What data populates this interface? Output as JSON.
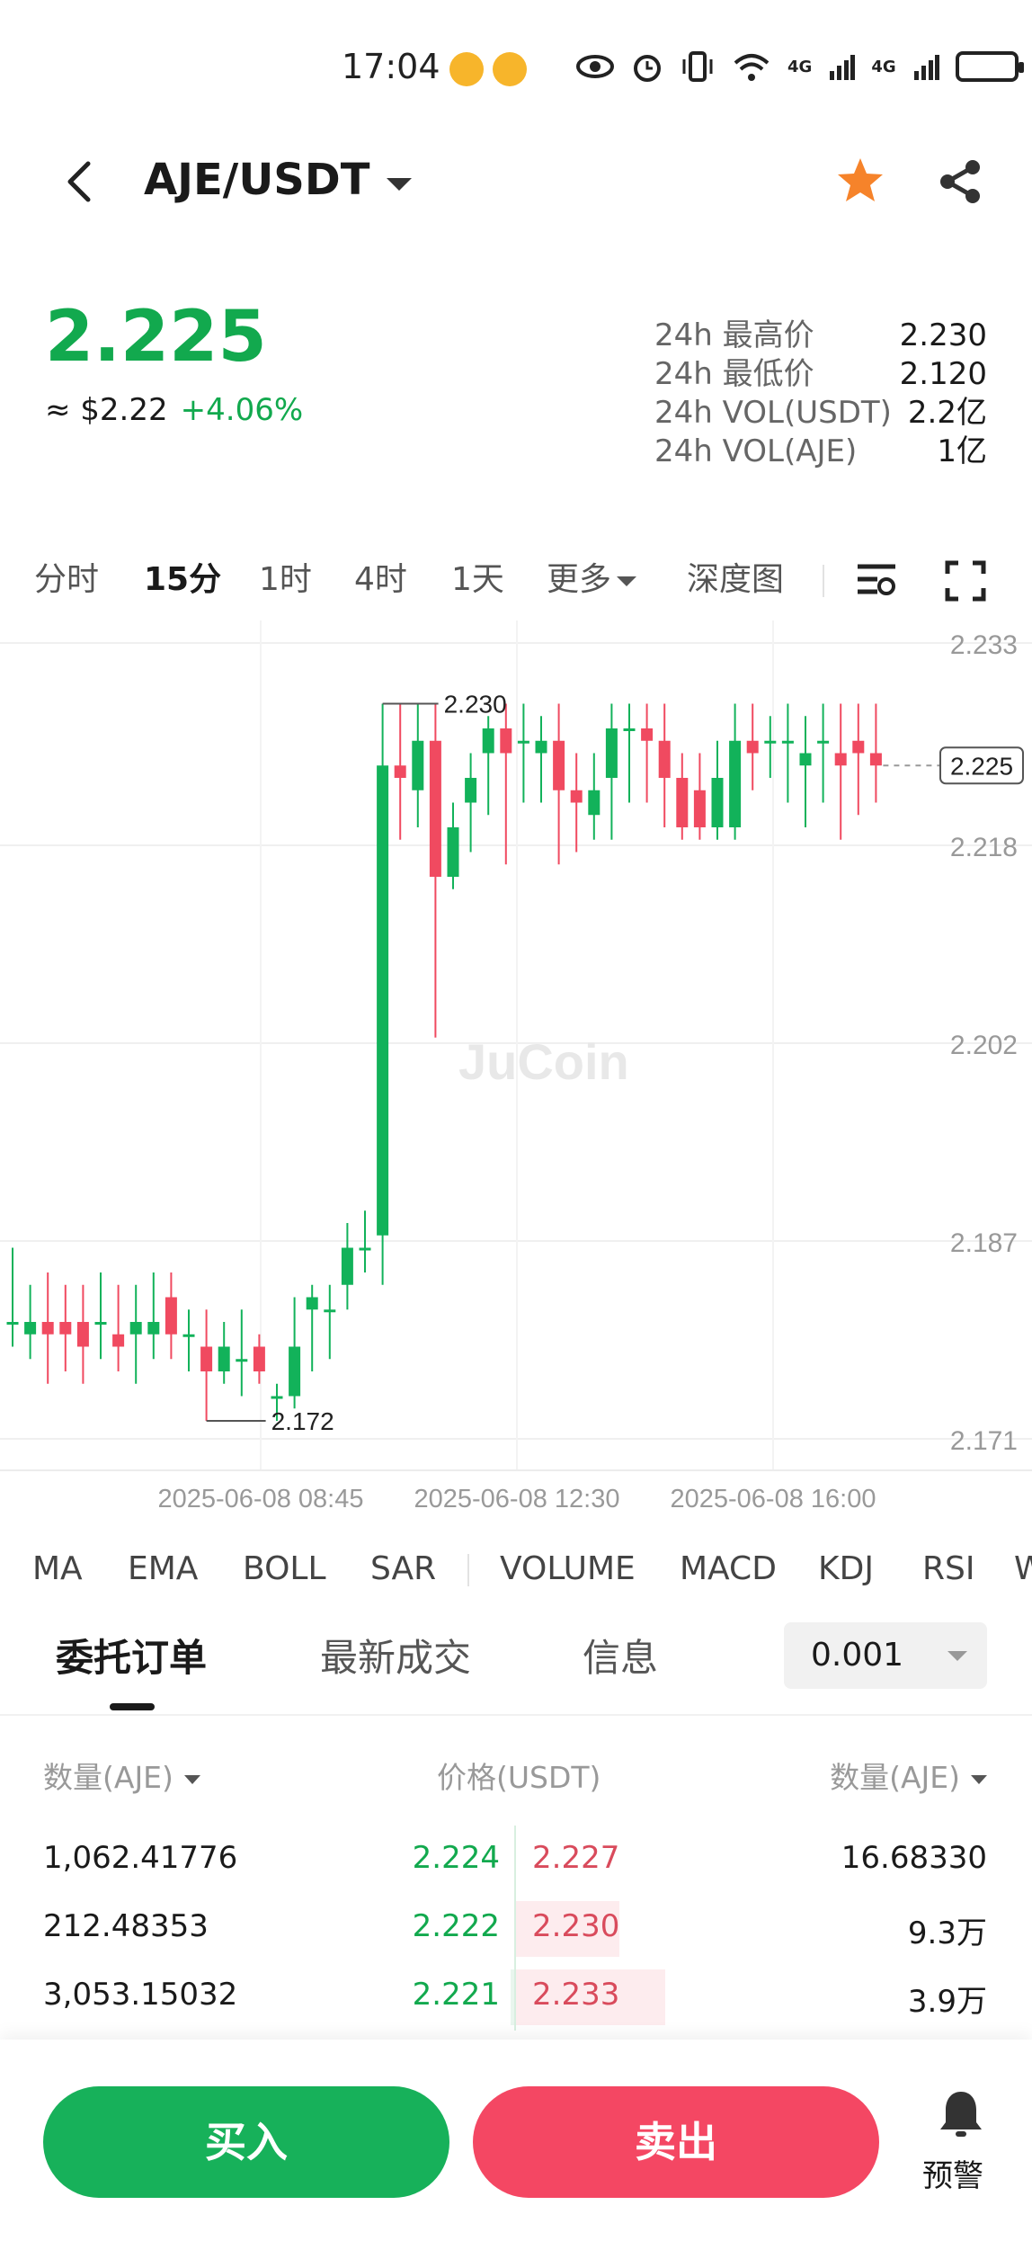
{
  "status_bar": {
    "time": "17:04",
    "network_1": "4G",
    "network_2": "4G"
  },
  "header": {
    "pair": "AJE/USDT"
  },
  "price": {
    "last": "2.225",
    "usd_equiv": "≈ $2.22",
    "change": "+4.06%",
    "color_up": "#12a94e"
  },
  "stats": [
    {
      "label": "24h 最高价",
      "value": "2.230"
    },
    {
      "label": "24h 最低价",
      "value": "2.120"
    },
    {
      "label": "24h VOL(USDT)",
      "value": "2.2亿"
    },
    {
      "label": "24h VOL(AJE)",
      "value": "1亿"
    }
  ],
  "intervals": {
    "items": [
      "分时",
      "15分",
      "1时",
      "4时",
      "1天",
      "更多",
      "深度图"
    ],
    "active": "15分"
  },
  "chart_data": {
    "type": "candlestick",
    "y_ticks": [
      "2.233",
      "2.218",
      "2.202",
      "2.187",
      "2.171"
    ],
    "x_ticks": [
      "2025-06-08 08:45",
      "2025-06-08 12:30",
      "2025-06-08 16:00"
    ],
    "current_price_label": "2.225",
    "high_label": "2.230",
    "low_label": "2.172",
    "watermark": "JuCoin",
    "ylim": [
      2.168,
      2.236
    ],
    "up_color": "#12b25a",
    "down_color": "#f04a60",
    "candles": [
      {
        "o": 2.18,
        "c": 2.18,
        "h": 2.186,
        "l": 2.178
      },
      {
        "o": 2.179,
        "c": 2.18,
        "h": 2.183,
        "l": 2.177
      },
      {
        "o": 2.18,
        "c": 2.179,
        "h": 2.184,
        "l": 2.175
      },
      {
        "o": 2.18,
        "c": 2.179,
        "h": 2.183,
        "l": 2.176
      },
      {
        "o": 2.18,
        "c": 2.178,
        "h": 2.183,
        "l": 2.175
      },
      {
        "o": 2.18,
        "c": 2.18,
        "h": 2.184,
        "l": 2.177
      },
      {
        "o": 2.179,
        "c": 2.178,
        "h": 2.183,
        "l": 2.176
      },
      {
        "o": 2.179,
        "c": 2.18,
        "h": 2.183,
        "l": 2.175
      },
      {
        "o": 2.179,
        "c": 2.18,
        "h": 2.184,
        "l": 2.177
      },
      {
        "o": 2.182,
        "c": 2.179,
        "h": 2.184,
        "l": 2.177
      },
      {
        "o": 2.179,
        "c": 2.179,
        "h": 2.181,
        "l": 2.176
      },
      {
        "o": 2.178,
        "c": 2.176,
        "h": 2.181,
        "l": 2.172
      },
      {
        "o": 2.176,
        "c": 2.178,
        "h": 2.18,
        "l": 2.175
      },
      {
        "o": 2.177,
        "c": 2.177,
        "h": 2.181,
        "l": 2.174
      },
      {
        "o": 2.178,
        "c": 2.176,
        "h": 2.179,
        "l": 2.175
      },
      {
        "o": 2.174,
        "c": 2.174,
        "h": 2.175,
        "l": 2.172
      },
      {
        "o": 2.174,
        "c": 2.178,
        "h": 2.182,
        "l": 2.173
      },
      {
        "o": 2.181,
        "c": 2.182,
        "h": 2.183,
        "l": 2.176
      },
      {
        "o": 2.181,
        "c": 2.181,
        "h": 2.183,
        "l": 2.177
      },
      {
        "o": 2.183,
        "c": 2.186,
        "h": 2.188,
        "l": 2.181
      },
      {
        "o": 2.186,
        "c": 2.186,
        "h": 2.189,
        "l": 2.184
      },
      {
        "o": 2.187,
        "c": 2.225,
        "h": 2.23,
        "l": 2.183
      },
      {
        "o": 2.225,
        "c": 2.224,
        "h": 2.23,
        "l": 2.219
      },
      {
        "o": 2.223,
        "c": 2.227,
        "h": 2.23,
        "l": 2.22
      },
      {
        "o": 2.227,
        "c": 2.216,
        "h": 2.23,
        "l": 2.203
      },
      {
        "o": 2.216,
        "c": 2.22,
        "h": 2.222,
        "l": 2.215
      },
      {
        "o": 2.222,
        "c": 2.224,
        "h": 2.226,
        "l": 2.218
      },
      {
        "o": 2.226,
        "c": 2.228,
        "h": 2.229,
        "l": 2.221
      },
      {
        "o": 2.228,
        "c": 2.226,
        "h": 2.23,
        "l": 2.217
      },
      {
        "o": 2.227,
        "c": 2.227,
        "h": 2.23,
        "l": 2.222
      },
      {
        "o": 2.226,
        "c": 2.227,
        "h": 2.229,
        "l": 2.222
      },
      {
        "o": 2.227,
        "c": 2.223,
        "h": 2.23,
        "l": 2.217
      },
      {
        "o": 2.223,
        "c": 2.222,
        "h": 2.226,
        "l": 2.218
      },
      {
        "o": 2.221,
        "c": 2.223,
        "h": 2.226,
        "l": 2.219
      },
      {
        "o": 2.224,
        "c": 2.228,
        "h": 2.23,
        "l": 2.219
      },
      {
        "o": 2.228,
        "c": 2.228,
        "h": 2.23,
        "l": 2.222
      },
      {
        "o": 2.228,
        "c": 2.227,
        "h": 2.23,
        "l": 2.222
      },
      {
        "o": 2.227,
        "c": 2.224,
        "h": 2.23,
        "l": 2.22
      },
      {
        "o": 2.224,
        "c": 2.22,
        "h": 2.226,
        "l": 2.219
      },
      {
        "o": 2.223,
        "c": 2.22,
        "h": 2.226,
        "l": 2.219
      },
      {
        "o": 2.22,
        "c": 2.224,
        "h": 2.227,
        "l": 2.219
      },
      {
        "o": 2.22,
        "c": 2.227,
        "h": 2.23,
        "l": 2.219
      },
      {
        "o": 2.227,
        "c": 2.226,
        "h": 2.23,
        "l": 2.223
      },
      {
        "o": 2.227,
        "c": 2.227,
        "h": 2.229,
        "l": 2.224
      },
      {
        "o": 2.227,
        "c": 2.227,
        "h": 2.23,
        "l": 2.222
      },
      {
        "o": 2.225,
        "c": 2.226,
        "h": 2.229,
        "l": 2.22
      },
      {
        "o": 2.227,
        "c": 2.227,
        "h": 2.23,
        "l": 2.222
      },
      {
        "o": 2.226,
        "c": 2.225,
        "h": 2.23,
        "l": 2.219
      },
      {
        "o": 2.227,
        "c": 2.226,
        "h": 2.23,
        "l": 2.221
      },
      {
        "o": 2.226,
        "c": 2.225,
        "h": 2.23,
        "l": 2.222
      }
    ]
  },
  "indicators": [
    "MA",
    "EMA",
    "BOLL",
    "SAR",
    "VOLUME",
    "MACD",
    "KDJ",
    "RSI",
    "WR"
  ],
  "order_tabs": {
    "items": [
      "委托订单",
      "最新成交",
      "信息"
    ],
    "active": "委托订单",
    "precision": "0.001"
  },
  "order_book": {
    "headers": {
      "bid_qty": "数量(AJE)",
      "price": "价格(USDT)",
      "ask_qty": "数量(AJE)"
    },
    "rows": [
      {
        "bid_qty": "1,062.41776",
        "bid_price": "2.224",
        "ask_price": "2.227",
        "ask_qty": "16.68330",
        "bid_depth": 0.0,
        "ask_depth": 0.0
      },
      {
        "bid_qty": "212.48353",
        "bid_price": "2.222",
        "ask_price": "2.230",
        "ask_qty": "9.3万",
        "bid_depth": 0.0,
        "ask_depth": 0.2
      },
      {
        "bid_qty": "3,053.15032",
        "bid_price": "2.221",
        "ask_price": "2.233",
        "ask_qty": "3.9万",
        "bid_depth": 0.01,
        "ask_depth": 0.29
      }
    ]
  },
  "bottom": {
    "buy": "买入",
    "sell": "卖出",
    "alert": "预警"
  }
}
